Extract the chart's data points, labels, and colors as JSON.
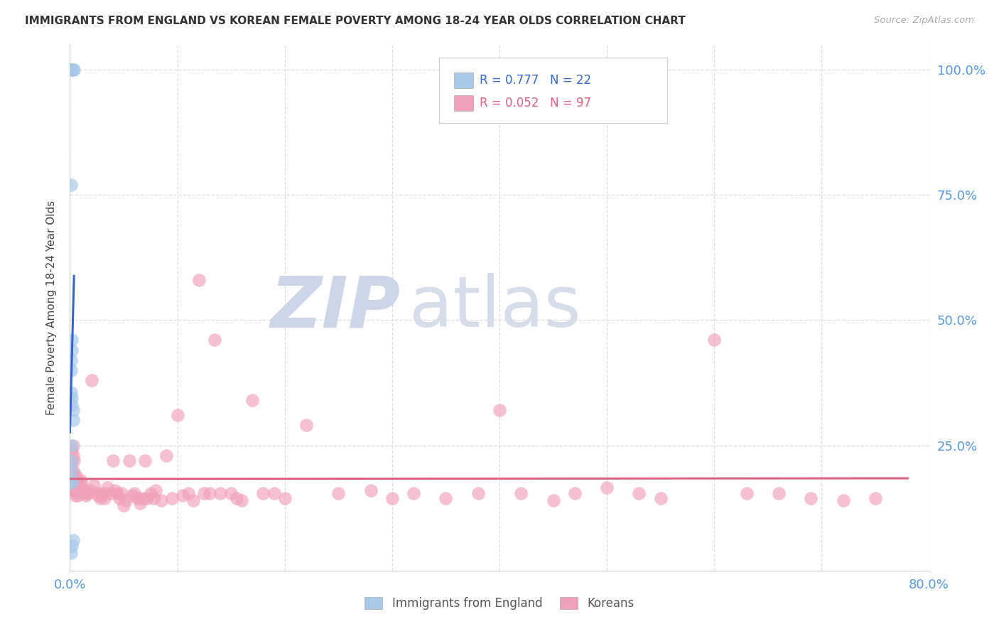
{
  "title": "IMMIGRANTS FROM ENGLAND VS KOREAN FEMALE POVERTY AMONG 18-24 YEAR OLDS CORRELATION CHART",
  "source": "Source: ZipAtlas.com",
  "ylabel": "Female Poverty Among 18-24 Year Olds",
  "xlim": [
    0.0,
    0.8
  ],
  "ylim": [
    0.0,
    1.05
  ],
  "xticks": [
    0.0,
    0.8
  ],
  "xtick_labels": [
    "0.0%",
    "80.0%"
  ],
  "yticks_right": [
    0.25,
    0.5,
    0.75,
    1.0
  ],
  "ytick_labels_right": [
    "25.0%",
    "50.0%",
    "75.0%",
    "100.0%"
  ],
  "blue_scatter_color": "#a8c8e8",
  "pink_scatter_color": "#f0a0b8",
  "blue_line_color": "#3366cc",
  "pink_line_color": "#e06080",
  "tick_label_color": "#5599dd",
  "grid_color": "#dddddd",
  "background_color": "#ffffff",
  "watermark_zip_color": "#cdd5e8",
  "watermark_atlas_color": "#d5dcea",
  "legend_box_color": "#eeeeee",
  "r_england": 0.777,
  "n_england": 22,
  "r_korean": 0.052,
  "n_korean": 97,
  "england_x": [
    0.001,
    0.002,
    0.003,
    0.0035,
    0.001,
    0.002,
    0.002,
    0.001,
    0.001,
    0.001,
    0.002,
    0.002,
    0.003,
    0.003,
    0.001,
    0.001,
    0.001,
    0.002,
    0.001,
    0.002,
    0.001,
    0.003
  ],
  "england_y": [
    1.0,
    1.0,
    1.0,
    1.0,
    0.77,
    0.46,
    0.44,
    0.42,
    0.4,
    0.355,
    0.345,
    0.33,
    0.32,
    0.3,
    0.25,
    0.22,
    0.2,
    0.18,
    0.175,
    0.05,
    0.035,
    0.06
  ],
  "korean_x": [
    0.001,
    0.001,
    0.001,
    0.001,
    0.002,
    0.002,
    0.002,
    0.002,
    0.003,
    0.003,
    0.003,
    0.003,
    0.004,
    0.004,
    0.004,
    0.005,
    0.005,
    0.006,
    0.006,
    0.007,
    0.007,
    0.008,
    0.009,
    0.01,
    0.011,
    0.012,
    0.013,
    0.015,
    0.016,
    0.018,
    0.02,
    0.022,
    0.025,
    0.026,
    0.028,
    0.03,
    0.032,
    0.033,
    0.035,
    0.038,
    0.04,
    0.042,
    0.044,
    0.046,
    0.048,
    0.05,
    0.052,
    0.055,
    0.058,
    0.06,
    0.063,
    0.065,
    0.068,
    0.07,
    0.072,
    0.075,
    0.078,
    0.08,
    0.085,
    0.09,
    0.095,
    0.1,
    0.105,
    0.11,
    0.115,
    0.12,
    0.125,
    0.13,
    0.135,
    0.14,
    0.15,
    0.155,
    0.16,
    0.17,
    0.18,
    0.19,
    0.2,
    0.22,
    0.25,
    0.28,
    0.3,
    0.32,
    0.35,
    0.38,
    0.4,
    0.42,
    0.45,
    0.47,
    0.5,
    0.53,
    0.55,
    0.6,
    0.63,
    0.66,
    0.69,
    0.72,
    0.75
  ],
  "korean_y": [
    0.22,
    0.2,
    0.18,
    0.16,
    0.24,
    0.22,
    0.19,
    0.17,
    0.25,
    0.23,
    0.2,
    0.17,
    0.22,
    0.19,
    0.16,
    0.18,
    0.15,
    0.19,
    0.16,
    0.18,
    0.15,
    0.17,
    0.16,
    0.18,
    0.17,
    0.16,
    0.155,
    0.15,
    0.155,
    0.16,
    0.38,
    0.17,
    0.155,
    0.15,
    0.145,
    0.155,
    0.145,
    0.155,
    0.165,
    0.155,
    0.22,
    0.16,
    0.155,
    0.145,
    0.155,
    0.13,
    0.14,
    0.22,
    0.15,
    0.155,
    0.145,
    0.135,
    0.145,
    0.22,
    0.145,
    0.155,
    0.145,
    0.16,
    0.14,
    0.23,
    0.145,
    0.31,
    0.15,
    0.155,
    0.14,
    0.58,
    0.155,
    0.155,
    0.46,
    0.155,
    0.155,
    0.145,
    0.14,
    0.34,
    0.155,
    0.155,
    0.145,
    0.29,
    0.155,
    0.16,
    0.145,
    0.155,
    0.145,
    0.155,
    0.32,
    0.155,
    0.14,
    0.155,
    0.165,
    0.155,
    0.145,
    0.46,
    0.155,
    0.155,
    0.145,
    0.14,
    0.145
  ]
}
